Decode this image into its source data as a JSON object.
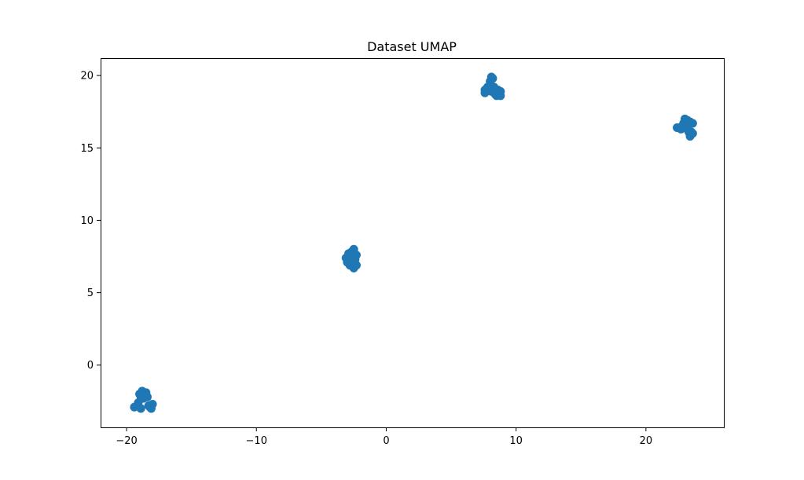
{
  "chart_data": {
    "type": "scatter",
    "title": "Dataset UMAP",
    "xlabel": "",
    "ylabel": "",
    "xlim": [
      -22,
      26
    ],
    "ylim": [
      -4.3,
      21.2
    ],
    "x_ticks": [
      {
        "value": -20,
        "label": "−20"
      },
      {
        "value": -10,
        "label": "−10"
      },
      {
        "value": 0,
        "label": "0"
      },
      {
        "value": 10,
        "label": "10"
      },
      {
        "value": 20,
        "label": "20"
      }
    ],
    "y_ticks": [
      {
        "value": 0,
        "label": "0"
      },
      {
        "value": 5,
        "label": "5"
      },
      {
        "value": 10,
        "label": "10"
      },
      {
        "value": 15,
        "label": "15"
      },
      {
        "value": 20,
        "label": "20"
      }
    ],
    "grid": false,
    "legend": "none",
    "series": [
      {
        "color": "#1f77b4",
        "points": [
          {
            "x": -19.4,
            "y": -2.9
          },
          {
            "x": -19.1,
            "y": -2.6
          },
          {
            "x": -18.9,
            "y": -2.2
          },
          {
            "x": -19.0,
            "y": -2.0
          },
          {
            "x": -18.8,
            "y": -1.8
          },
          {
            "x": -18.5,
            "y": -1.9
          },
          {
            "x": -18.4,
            "y": -2.2
          },
          {
            "x": -18.7,
            "y": -2.3
          },
          {
            "x": -19.2,
            "y": -2.8
          },
          {
            "x": -18.9,
            "y": -3.0
          },
          {
            "x": -18.3,
            "y": -2.8
          },
          {
            "x": -18.1,
            "y": -3.0
          },
          {
            "x": -18.0,
            "y": -2.7
          },
          {
            "x": -18.2,
            "y": -2.9
          },
          {
            "x": -18.5,
            "y": -2.1
          },
          {
            "x": -3.1,
            "y": 7.4
          },
          {
            "x": -2.9,
            "y": 7.7
          },
          {
            "x": -2.7,
            "y": 7.8
          },
          {
            "x": -2.5,
            "y": 8.0
          },
          {
            "x": -2.3,
            "y": 7.6
          },
          {
            "x": -2.4,
            "y": 7.3
          },
          {
            "x": -2.6,
            "y": 7.1
          },
          {
            "x": -2.8,
            "y": 6.9
          },
          {
            "x": -3.0,
            "y": 7.1
          },
          {
            "x": -2.5,
            "y": 6.7
          },
          {
            "x": -2.3,
            "y": 6.9
          },
          {
            "x": -2.7,
            "y": 7.5
          },
          {
            "x": -2.9,
            "y": 7.2
          },
          {
            "x": -2.6,
            "y": 7.6
          },
          {
            "x": -2.4,
            "y": 7.0
          },
          {
            "x": 8.1,
            "y": 19.9
          },
          {
            "x": 8.0,
            "y": 19.6
          },
          {
            "x": 8.2,
            "y": 19.8
          },
          {
            "x": 7.6,
            "y": 19.0
          },
          {
            "x": 7.7,
            "y": 18.9
          },
          {
            "x": 7.6,
            "y": 18.8
          },
          {
            "x": 7.9,
            "y": 19.1
          },
          {
            "x": 8.1,
            "y": 18.9
          },
          {
            "x": 8.4,
            "y": 18.7
          },
          {
            "x": 8.6,
            "y": 19.0
          },
          {
            "x": 8.8,
            "y": 18.9
          },
          {
            "x": 8.8,
            "y": 18.6
          },
          {
            "x": 7.8,
            "y": 19.2
          },
          {
            "x": 8.3,
            "y": 19.2
          },
          {
            "x": 8.5,
            "y": 18.6
          },
          {
            "x": 22.4,
            "y": 16.4
          },
          {
            "x": 22.6,
            "y": 16.4
          },
          {
            "x": 22.7,
            "y": 16.3
          },
          {
            "x": 23.0,
            "y": 17.0
          },
          {
            "x": 23.2,
            "y": 16.9
          },
          {
            "x": 23.4,
            "y": 16.8
          },
          {
            "x": 23.6,
            "y": 16.7
          },
          {
            "x": 23.3,
            "y": 16.6
          },
          {
            "x": 23.2,
            "y": 16.3
          },
          {
            "x": 23.3,
            "y": 16.1
          },
          {
            "x": 23.6,
            "y": 16.0
          },
          {
            "x": 23.4,
            "y": 15.8
          },
          {
            "x": 23.5,
            "y": 16.1
          },
          {
            "x": 22.9,
            "y": 16.7
          },
          {
            "x": 22.8,
            "y": 16.5
          }
        ]
      }
    ]
  }
}
